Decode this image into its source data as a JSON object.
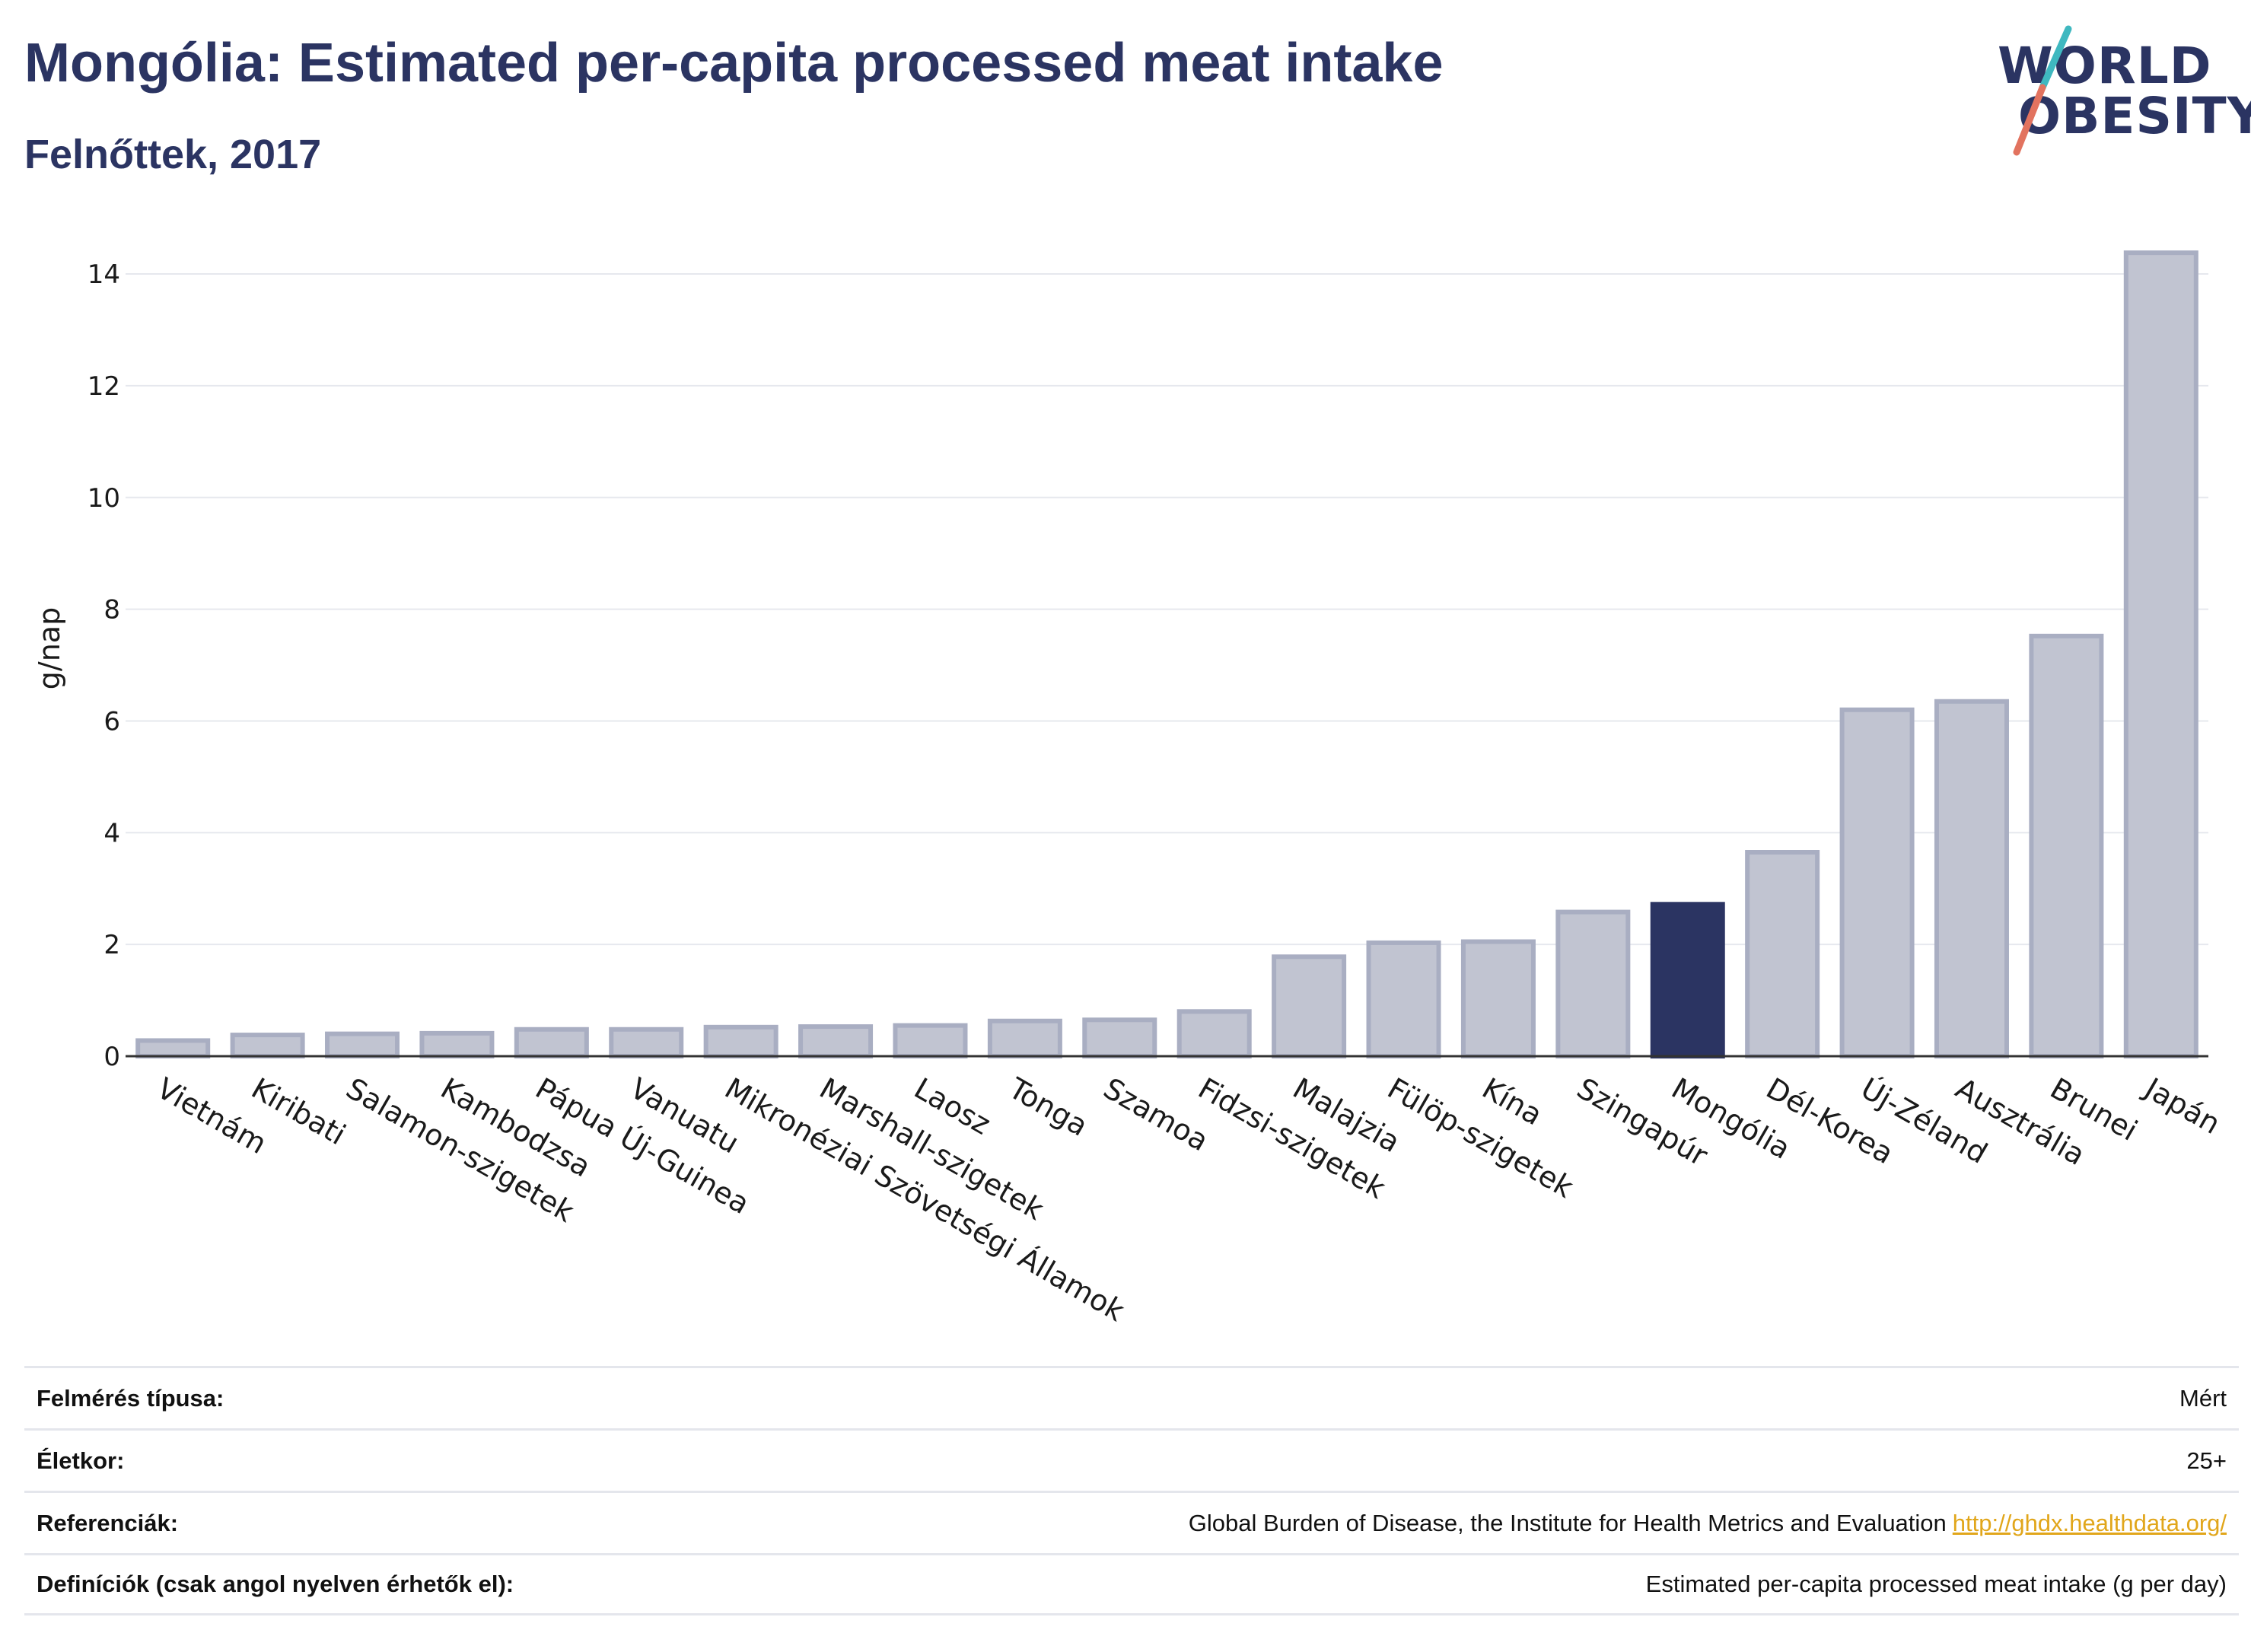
{
  "header": {
    "title": "Mongólia: Estimated per-capita processed meat intake",
    "subtitle": "Felnőttek, 2017"
  },
  "logo": {
    "line1": "WORLD",
    "line2": "OBESITY",
    "colors": {
      "text": "#2b3462",
      "slash_top": "#3fb8c0",
      "slash_bottom": "#e2735f"
    }
  },
  "chart_data": {
    "type": "bar",
    "ylabel": "g/nap",
    "ylim": [
      0,
      14.6
    ],
    "yticks": [
      0,
      2,
      4,
      6,
      8,
      10,
      12,
      14
    ],
    "grid": true,
    "highlight": "Mongólia",
    "colors": {
      "bar": "#c1c4d1",
      "bar_edge": "#a9aec2",
      "highlight": "#2b3462",
      "grid": "#e6e8ee"
    },
    "categories": [
      "Vietnám",
      "Kiribati",
      "Salamon-szigetek",
      "Kambodzsa",
      "Pápua Új-Guinea",
      "Vanuatu",
      "Mikronéziai Szövetségi Államok",
      "Marshall-szigetek",
      "Laosz",
      "Tonga",
      "Szamoa",
      "Fidzsi-szigetek",
      "Malajzia",
      "Fülöp-szigetek",
      "Kína",
      "Szingapúr",
      "Mongólia",
      "Dél-Korea",
      "Új-Zéland",
      "Ausztrália",
      "Brunei",
      "Japán"
    ],
    "values": [
      0.28,
      0.38,
      0.4,
      0.41,
      0.48,
      0.48,
      0.52,
      0.53,
      0.55,
      0.63,
      0.65,
      0.8,
      1.78,
      2.03,
      2.05,
      2.58,
      2.72,
      3.65,
      6.2,
      6.35,
      7.52,
      14.38
    ]
  },
  "info": [
    {
      "label": "Felmérés típusa:",
      "value": "Mért"
    },
    {
      "label": "Életkor:",
      "value": "25+"
    },
    {
      "label": "Referenciák:",
      "value": "Global Burden of Disease, the Institute for Health Metrics and Evaluation",
      "link": "http://ghdx.healthdata.org/"
    },
    {
      "label": "Definíciók (csak angol nyelven érhetők el):",
      "value": "Estimated per-capita processed meat intake (g per day)"
    }
  ]
}
